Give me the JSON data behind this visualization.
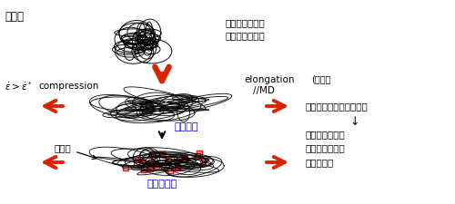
{
  "title_top_left": "静置場",
  "polymer_label": "過冷却融液中の\n１本の高分子鎖",
  "compression_label": "compression",
  "elongation_label": "elongation",
  "elongation_sub": "(伸長）",
  "elongation_sub2": "//MD",
  "oriented_melt_label": "配向融液",
  "nano_nucleus_label": "ナノ核",
  "uniform_nucleation_label": "均一核生成",
  "right_text1": "分子鎖が引き伸ばされる",
  "right_text2": "↓",
  "right_text3": "無数のナノ核が\nあらゆる場所で\n容易に生成",
  "arrow_color": "#dd2200",
  "blue_text_color": "#0000dd",
  "black": "#000000",
  "white": "#ffffff",
  "bg_color": "#ffffff"
}
